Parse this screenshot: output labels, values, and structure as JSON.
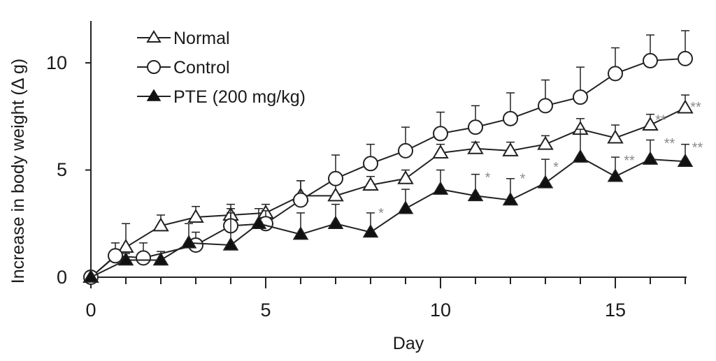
{
  "chart_data": {
    "type": "line",
    "xlabel": "Day",
    "ylabel": "Increase in body weight (Δ g)",
    "xlim": [
      0,
      17
    ],
    "ylim": [
      0,
      12
    ],
    "xticks": [
      "0",
      "5",
      "10",
      "15"
    ],
    "yticks": [
      "0",
      "5",
      "10"
    ],
    "grid": false,
    "legend_position": "top-left",
    "series": [
      {
        "name": "Normal",
        "marker": "open-triangle",
        "x": [
          0,
          1,
          2,
          3,
          4,
          5,
          6,
          7,
          8,
          9,
          10,
          11,
          12,
          13,
          14,
          15,
          16,
          17
        ],
        "y": [
          0,
          1.4,
          2.4,
          2.8,
          2.9,
          3.0,
          3.8,
          3.8,
          4.3,
          4.6,
          5.8,
          6.0,
          5.9,
          6.2,
          6.9,
          6.5,
          7.1,
          7.9
        ],
        "error": [
          0,
          1.1,
          0.5,
          0.5,
          0.5,
          0.4,
          0.7,
          0.8,
          0.4,
          0.4,
          0.4,
          0.3,
          0.4,
          0.4,
          0.5,
          0.6,
          0.5,
          0.6
        ]
      },
      {
        "name": "Control",
        "marker": "open-circle",
        "x": [
          0,
          0.7,
          1.5,
          3,
          4,
          5,
          6,
          7,
          8,
          9,
          10,
          11,
          12,
          13,
          14,
          15,
          16,
          17
        ],
        "y": [
          0,
          1.0,
          0.9,
          1.5,
          2.4,
          2.5,
          3.6,
          4.6,
          5.3,
          5.9,
          6.7,
          7.0,
          7.4,
          8.0,
          8.4,
          9.5,
          10.1,
          10.2
        ],
        "error": [
          0,
          0.6,
          0.7,
          0.6,
          0.8,
          0.6,
          0.9,
          1.1,
          0.9,
          1.1,
          1.0,
          1.0,
          1.2,
          1.2,
          1.4,
          1.2,
          1.2,
          1.3
        ]
      },
      {
        "name": "PTE (200 mg/kg)",
        "marker": "filled-triangle",
        "x": [
          0,
          1,
          2,
          2.8,
          4,
          4.8,
          6,
          7,
          8,
          9,
          10,
          11,
          12,
          13,
          14,
          15,
          16,
          17
        ],
        "y": [
          0,
          0.8,
          0.8,
          1.6,
          1.5,
          2.5,
          2.0,
          2.5,
          2.1,
          3.2,
          4.1,
          3.8,
          3.6,
          4.4,
          5.6,
          4.7,
          5.5,
          5.4
        ],
        "error": [
          0,
          0.3,
          0.4,
          0.9,
          1.5,
          0.7,
          1.0,
          0.9,
          0.9,
          0.9,
          0.9,
          1.0,
          1.0,
          1.1,
          1.3,
          0.9,
          0.9,
          0.8
        ]
      }
    ],
    "annotations": [
      {
        "text": "*",
        "x": 8.3,
        "y": 3.1
      },
      {
        "text": "*",
        "x": 11.35,
        "y": 4.75
      },
      {
        "text": "*",
        "x": 12.35,
        "y": 4.7
      },
      {
        "text": "*",
        "x": 13.3,
        "y": 5.25
      },
      {
        "text": "**",
        "x": 16.3,
        "y": 7.45
      },
      {
        "text": "**",
        "x": 17.3,
        "y": 8.05
      },
      {
        "text": "**",
        "x": 15.4,
        "y": 5.55
      },
      {
        "text": "**",
        "x": 16.55,
        "y": 6.35
      },
      {
        "text": "**",
        "x": 17.35,
        "y": 6.15
      }
    ]
  }
}
